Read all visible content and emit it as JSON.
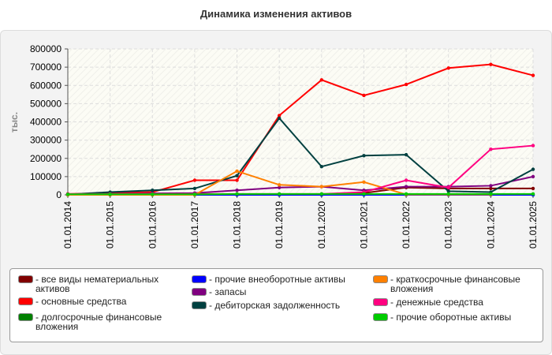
{
  "chart_data": {
    "type": "line",
    "title": "Динамика изменения активов",
    "ylabel": "тыс.",
    "xlabel": "",
    "ylim": [
      0,
      800000
    ],
    "yticks": [
      "0",
      "100000",
      "200000",
      "300000",
      "400000",
      "500000",
      "600000",
      "700000",
      "800000"
    ],
    "categories": [
      "01.01.2014",
      "01.01.2015",
      "01.01.2016",
      "01.01.2017",
      "01.01.2018",
      "01.01.2019",
      "01.01.2020",
      "01.01.2021",
      "01.01.2022",
      "01.01.2023",
      "01.01.2024",
      "01.01.2025"
    ],
    "grid": true,
    "legend": "bottom",
    "series": [
      {
        "name": "все виды нематериальных активов",
        "color": "#800000",
        "values": [
          0,
          0,
          0,
          0,
          0,
          0,
          0,
          10000,
          40000,
          35000,
          35000,
          35000
        ]
      },
      {
        "name": "основные средства",
        "color": "#ff0000",
        "values": [
          5000,
          10000,
          15000,
          80000,
          80000,
          435000,
          630000,
          545000,
          605000,
          695000,
          715000,
          655000
        ]
      },
      {
        "name": "долгосрочные финансовые вложения",
        "color": "#008000",
        "values": [
          0,
          0,
          0,
          0,
          0,
          0,
          0,
          0,
          0,
          0,
          0,
          0
        ]
      },
      {
        "name": "прочие внеоборотные активы",
        "color": "#0000ff",
        "values": [
          0,
          0,
          0,
          0,
          0,
          0,
          0,
          0,
          0,
          0,
          0,
          0
        ]
      },
      {
        "name": "запасы",
        "color": "#800080",
        "values": [
          2000,
          5000,
          8000,
          10000,
          25000,
          40000,
          45000,
          25000,
          45000,
          45000,
          50000,
          100000
        ]
      },
      {
        "name": "дебиторская задолженность",
        "color": "#004040",
        "values": [
          2000,
          15000,
          25000,
          35000,
          105000,
          420000,
          155000,
          215000,
          220000,
          20000,
          15000,
          140000
        ]
      },
      {
        "name": "краткосрочные финансовые вложения",
        "color": "#ff8000",
        "values": [
          0,
          0,
          0,
          0,
          130000,
          55000,
          45000,
          70000,
          2000,
          2000,
          2000,
          null
        ]
      },
      {
        "name": "денежные средства",
        "color": "#ff0080",
        "values": [
          5000,
          5000,
          5000,
          5000,
          5000,
          5000,
          5000,
          15000,
          80000,
          40000,
          250000,
          270000
        ]
      },
      {
        "name": "прочие оборотные активы",
        "color": "#00cc00",
        "values": [
          3000,
          3000,
          3000,
          3000,
          5000,
          5000,
          5000,
          5000,
          5000,
          5000,
          5000,
          5000
        ]
      }
    ]
  }
}
